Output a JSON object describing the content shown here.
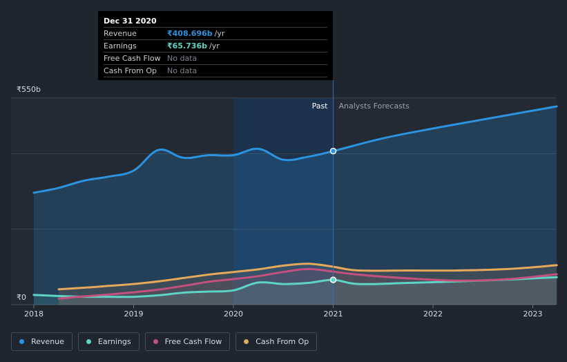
{
  "tooltip": {
    "date": "Dec 31 2020",
    "rows": [
      {
        "name": "Revenue",
        "value": "₹408.696b",
        "unit": "/yr",
        "color": "#2b93e0"
      },
      {
        "name": "Earnings",
        "value": "₹65.736b",
        "unit": "/yr",
        "color": "#5ed5c4"
      },
      {
        "name": "Free Cash Flow",
        "value": "No data",
        "unit": "",
        "color": ""
      },
      {
        "name": "Cash From Op",
        "value": "No data",
        "unit": "",
        "color": ""
      }
    ]
  },
  "chart_data": {
    "type": "area",
    "x_range": [
      2018,
      2023.24
    ],
    "ylim": [
      0,
      550
    ],
    "y_tick_labels": [
      {
        "value": 550,
        "label": "₹550b"
      },
      {
        "value": 0,
        "label": "₹0"
      }
    ],
    "x_tick_labels": [
      "2018",
      "2019",
      "2020",
      "2021",
      "2022",
      "2023"
    ],
    "x_tick_values": [
      2018,
      2019,
      2020,
      2021,
      2022,
      2023
    ],
    "past_label": "Past",
    "forecast_label": "Analysts Forecasts",
    "past_end": 2021.0,
    "highlight_start": 2020.0,
    "grid": true,
    "series": [
      {
        "name": "Revenue",
        "color": "#2b93e0",
        "points": [
          [
            2018,
            298
          ],
          [
            2018.25,
            311
          ],
          [
            2018.5,
            330
          ],
          [
            2018.75,
            341
          ],
          [
            2019.0,
            357
          ],
          [
            2019.25,
            412
          ],
          [
            2019.5,
            391
          ],
          [
            2019.75,
            398
          ],
          [
            2020.0,
            398
          ],
          [
            2020.25,
            415
          ],
          [
            2020.5,
            386
          ],
          [
            2020.75,
            394
          ],
          [
            2021.0,
            409
          ],
          [
            2021.5,
            443
          ],
          [
            2022.0,
            469
          ],
          [
            2022.5,
            493
          ],
          [
            2023.24,
            528
          ]
        ]
      },
      {
        "name": "Earnings",
        "color": "#5ed5c4",
        "points": [
          [
            2018,
            26
          ],
          [
            2018.25,
            23
          ],
          [
            2018.5,
            21
          ],
          [
            2018.75,
            21
          ],
          [
            2019.0,
            21
          ],
          [
            2019.25,
            25
          ],
          [
            2019.5,
            32
          ],
          [
            2019.75,
            35
          ],
          [
            2020.0,
            38
          ],
          [
            2020.25,
            59
          ],
          [
            2020.5,
            55
          ],
          [
            2020.75,
            58
          ],
          [
            2021.0,
            66
          ],
          [
            2021.25,
            55
          ],
          [
            2021.75,
            58
          ],
          [
            2022.25,
            62
          ],
          [
            2022.75,
            67
          ],
          [
            2023.24,
            73
          ]
        ]
      },
      {
        "name": "Free Cash Flow",
        "color": "#c3507e",
        "points": [
          [
            2018.25,
            16
          ],
          [
            2018.5,
            22
          ],
          [
            2018.75,
            27
          ],
          [
            2019.0,
            33
          ],
          [
            2019.25,
            40
          ],
          [
            2019.5,
            50
          ],
          [
            2019.75,
            61
          ],
          [
            2020.0,
            68
          ],
          [
            2020.25,
            76
          ],
          [
            2020.5,
            87
          ],
          [
            2020.75,
            95
          ],
          [
            2021.0,
            88
          ],
          [
            2021.25,
            80
          ],
          [
            2021.75,
            70
          ],
          [
            2022.25,
            64
          ],
          [
            2022.75,
            68
          ],
          [
            2023.24,
            81
          ]
        ]
      },
      {
        "name": "Cash From Op",
        "color": "#e6a85a",
        "points": [
          [
            2018.25,
            41
          ],
          [
            2018.5,
            45
          ],
          [
            2018.75,
            50
          ],
          [
            2019.0,
            55
          ],
          [
            2019.25,
            62
          ],
          [
            2019.5,
            71
          ],
          [
            2019.75,
            80
          ],
          [
            2020.0,
            87
          ],
          [
            2020.25,
            94
          ],
          [
            2020.5,
            104
          ],
          [
            2020.75,
            109
          ],
          [
            2021.0,
            101
          ],
          [
            2021.25,
            91
          ],
          [
            2021.75,
            91
          ],
          [
            2022.25,
            91
          ],
          [
            2022.75,
            95
          ],
          [
            2023.24,
            105
          ]
        ]
      }
    ]
  },
  "legend": [
    {
      "label": "Revenue",
      "color": "#2b93e0"
    },
    {
      "label": "Earnings",
      "color": "#5ed5c4"
    },
    {
      "label": "Free Cash Flow",
      "color": "#c3507e"
    },
    {
      "label": "Cash From Op",
      "color": "#e6a85a"
    }
  ]
}
